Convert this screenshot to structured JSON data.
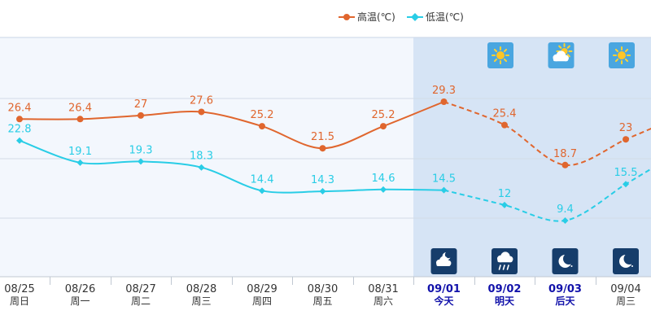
{
  "legend": {
    "high_label": "高温(℃)",
    "low_label": "低温(℃)"
  },
  "colors": {
    "high": "#e0662e",
    "low": "#29cde6",
    "past_bg": "#f3f7fd",
    "forecast_bg": "#d6e4f5",
    "today_text": "#1111aa",
    "normal_text": "#333333"
  },
  "chart_data": {
    "type": "line",
    "categories": [
      "08/25",
      "08/26",
      "08/27",
      "08/28",
      "08/29",
      "08/30",
      "08/31",
      "09/01",
      "09/02",
      "09/03",
      "09/04"
    ],
    "weekdays": [
      "周日",
      "周一",
      "周二",
      "周三",
      "周四",
      "周五",
      "周六",
      "今天",
      "明天",
      "后天",
      "周三"
    ],
    "series": [
      {
        "name": "高温(℃)",
        "values": [
          26.4,
          26.4,
          27,
          27.6,
          25.2,
          21.5,
          25.2,
          29.3,
          25.4,
          18.7,
          23
        ],
        "forecast_from_index": 7
      },
      {
        "name": "低温(℃)",
        "values": [
          22.8,
          19.1,
          19.3,
          18.3,
          14.4,
          14.3,
          14.6,
          14.5,
          12,
          9.4,
          15.5
        ],
        "forecast_from_index": 7
      }
    ],
    "highlighted_categories": [
      "09/01",
      "09/02",
      "09/03"
    ],
    "day_weather_icons": [
      {
        "category": "09/02",
        "icon": "sunny-icon"
      },
      {
        "category": "09/03",
        "icon": "partly-cloudy-day-icon"
      },
      {
        "category": "09/04",
        "icon": "sunny-icon"
      }
    ],
    "night_weather_icons": [
      {
        "category": "09/01",
        "icon": "cloudy-night-icon"
      },
      {
        "category": "09/02",
        "icon": "rain-icon"
      },
      {
        "category": "09/03",
        "icon": "clear-night-icon"
      },
      {
        "category": "09/04",
        "icon": "clear-night-icon"
      }
    ],
    "grid": true,
    "legend_position": "top-right"
  }
}
